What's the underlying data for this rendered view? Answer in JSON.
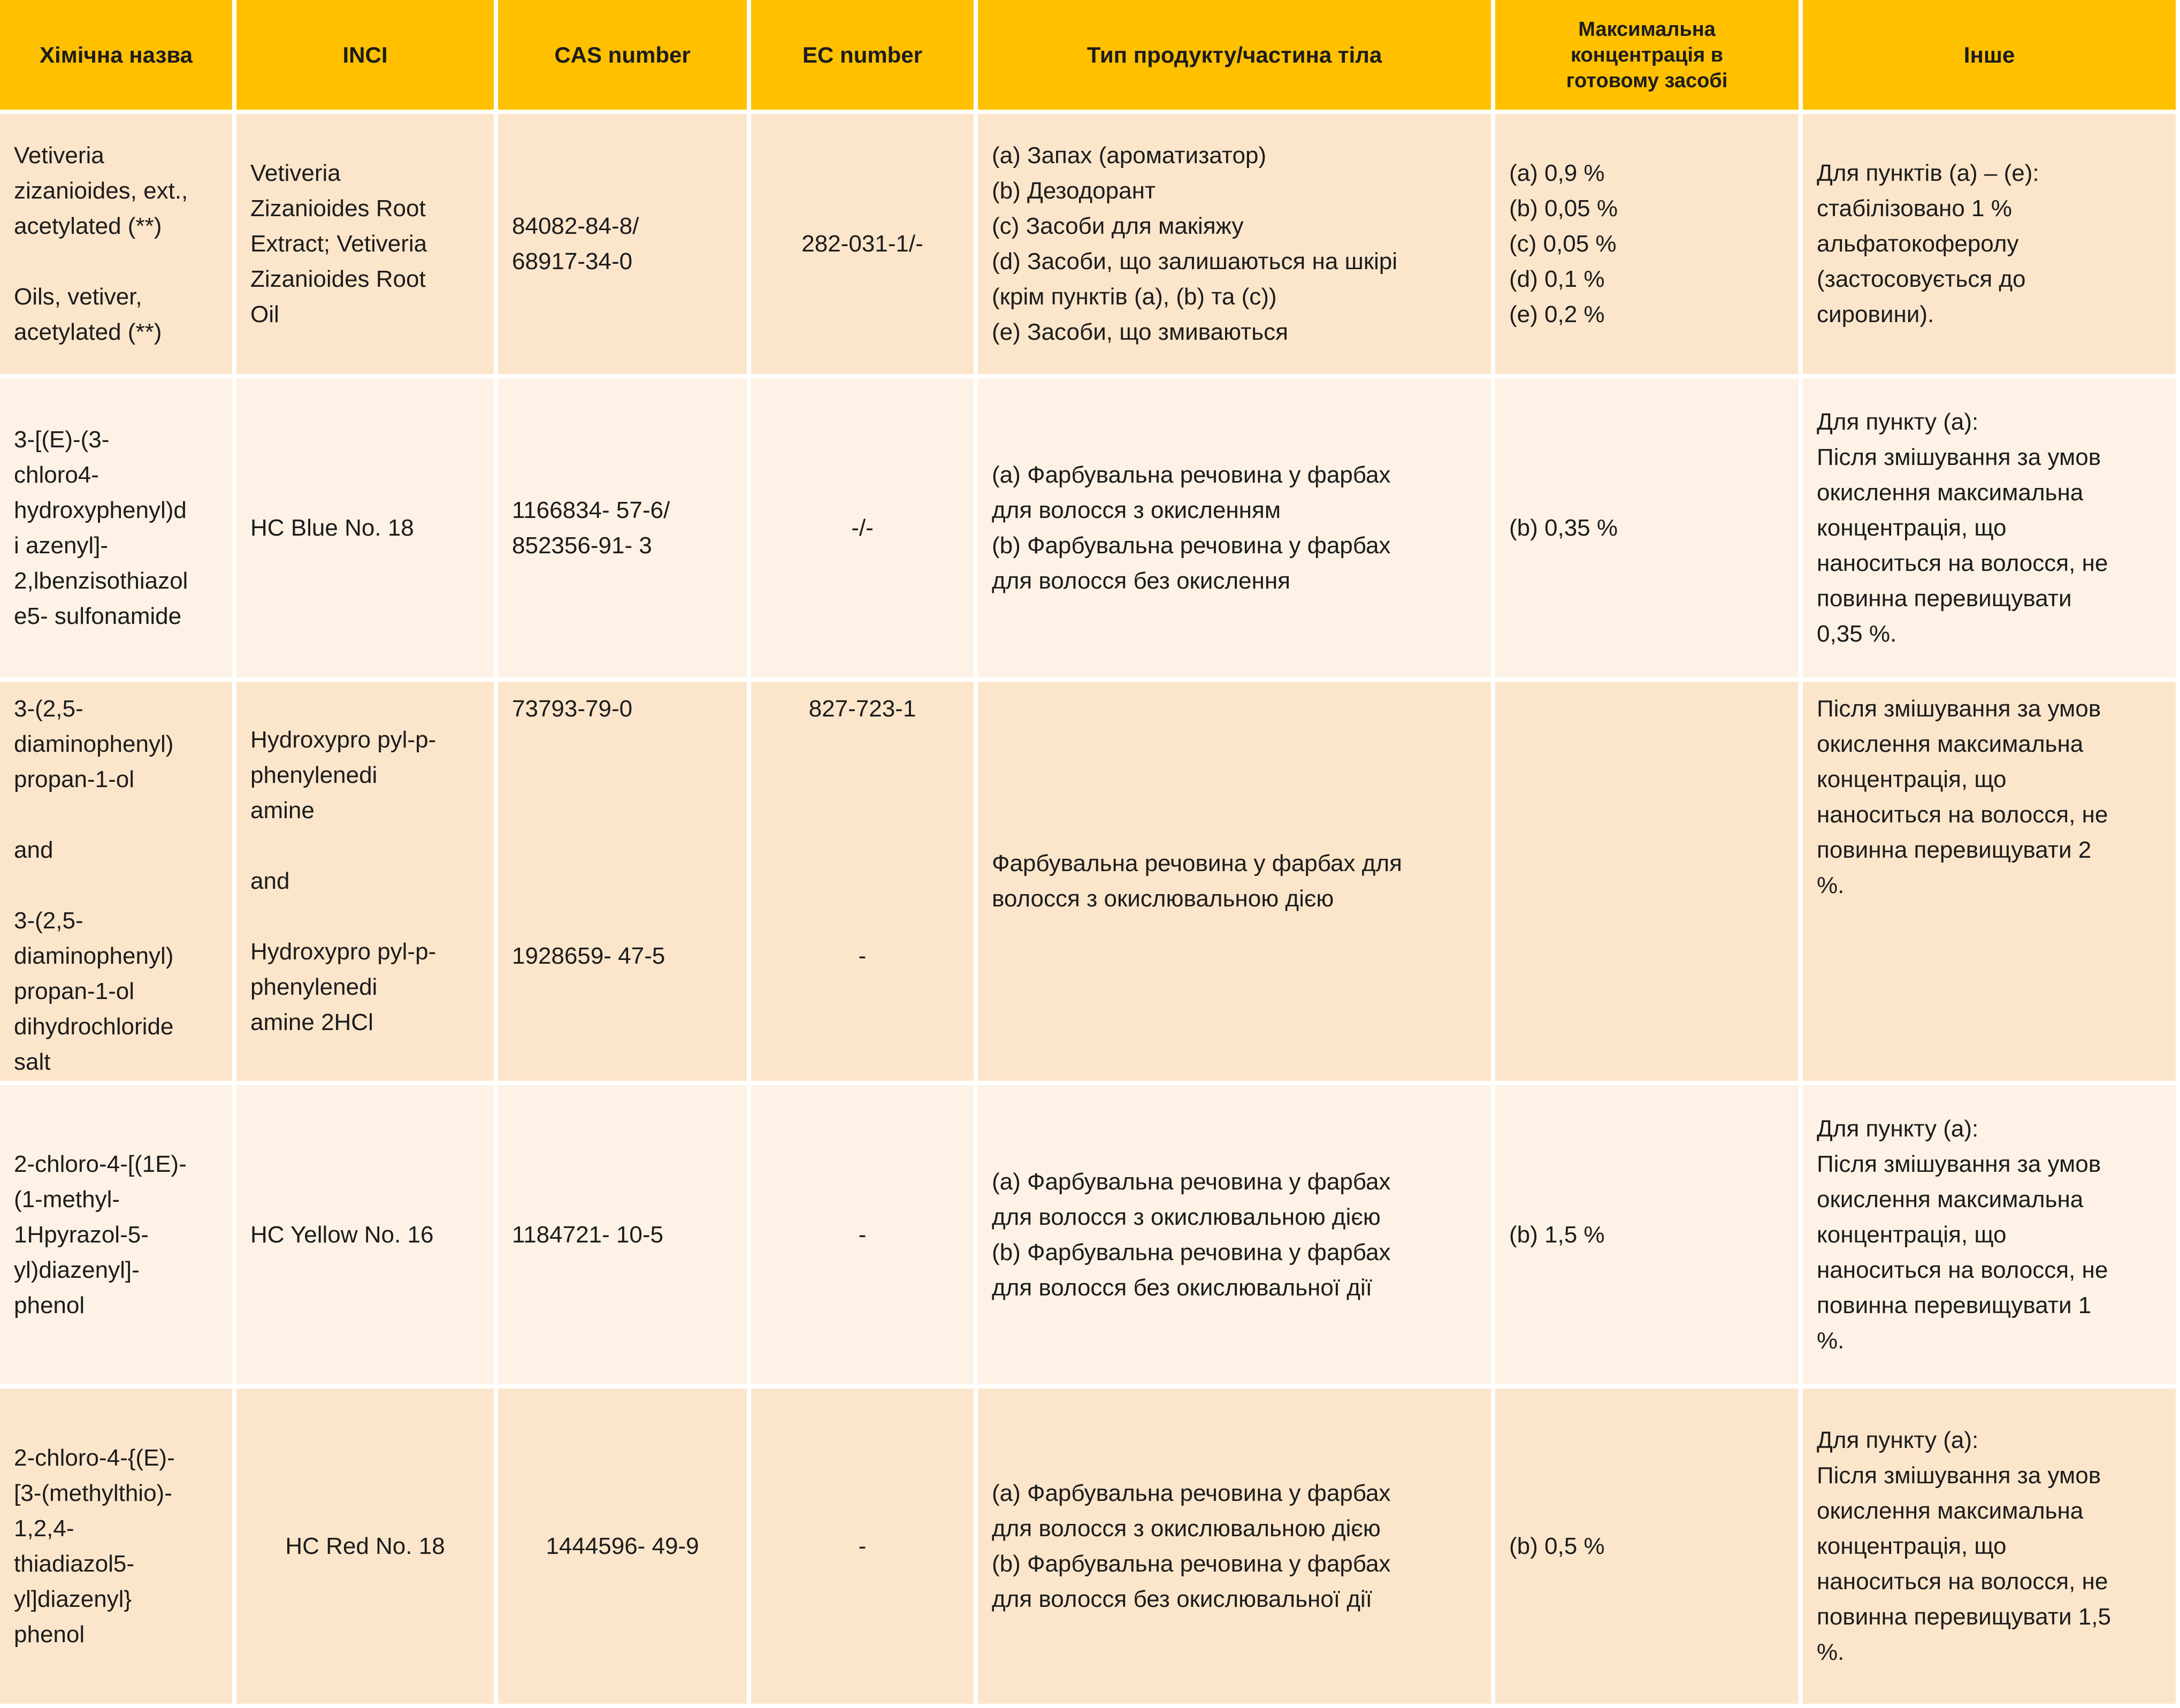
{
  "header": {
    "columns": [
      [
        "Хімічна назва"
      ],
      [
        "INCI"
      ],
      [
        "CAS number"
      ],
      [
        "EC number"
      ],
      [
        "Тип продукту/частина тіла"
      ],
      [
        "Максимальна",
        "концентрація в",
        "готовому засобі"
      ],
      [
        "Інше"
      ]
    ]
  },
  "table": {
    "rows": [
      [
        [
          [
            "Vetiveria",
            "zizanioides, ext.,",
            "acetylated (**)"
          ],
          [
            "Oils, vetiver,",
            "acetylated (**)"
          ]
        ],
        [
          [
            "Vetiveria",
            "Zizanioides Root",
            "Extract; Vetiveria",
            "Zizanioides Root",
            "Oil"
          ]
        ],
        [
          [
            "84082-84-8/",
            "68917-34-0"
          ]
        ],
        [
          [
            "282-031-1/-"
          ]
        ],
        [
          [
            "(a) Запах (ароматизатор)",
            "(b) Дезодорант",
            "(c) Засоби для макіяжу",
            "(d) Засоби, що залишаються на шкірі",
            "(крім пунктів (a), (b) та (c))",
            "(e) Засоби, що змиваються"
          ]
        ],
        [
          [
            "(a) 0,9 %",
            "(b) 0,05 %",
            "(c) 0,05 %",
            "(d) 0,1 %",
            "(e) 0,2 %"
          ]
        ],
        [
          [
            "Для пунктів (a) – (e):",
            "стабілізовано 1 %",
            "альфатокоферолу",
            "(застосовується до",
            "сировини)."
          ]
        ]
      ],
      [
        [
          [
            "3-[(E)-(3-",
            "chloro4-",
            "hydroxyphenyl)d",
            "i azenyl]-",
            "2,lbenzisothiazol",
            "e5- sulfonamide"
          ]
        ],
        [
          [
            "HC Blue No. 18"
          ]
        ],
        [
          [
            "1166834- 57-6/",
            "852356-91- 3"
          ]
        ],
        [
          [
            "-/-"
          ]
        ],
        [
          [
            "(a) Фарбувальна речовина у фарбах",
            "для волосся з окисленням",
            "(b) Фарбувальна речовина у фарбах",
            "для волосся без окислення"
          ]
        ],
        [
          [
            "(b) 0,35 %"
          ]
        ],
        [
          [
            "Для пункту (a):",
            "Після змішування за умов",
            "окислення максимальна",
            "концентрація, що",
            "наноситься на волосся, не",
            "повинна перевищувати",
            "0,35 %."
          ]
        ]
      ],
      [
        [
          [
            "3-(2,5-",
            "diaminophenyl)",
            "propan-1-ol"
          ],
          [
            "and"
          ],
          [
            "3-(2,5-",
            "diaminophenyl)",
            "propan-1-ol",
            "dihydrochloride",
            "salt"
          ]
        ],
        [
          [
            "Hydroxypro pyl-p-",
            "phenylenedi",
            "amine"
          ],
          [
            " and"
          ],
          [
            "Hydroxypro pyl-p-",
            "phenylenedi",
            "amine 2HCl"
          ]
        ],
        [
          [
            "73793-79-0"
          ],
          [
            "1928659- 47-5"
          ]
        ],
        [
          [
            "827-723-1"
          ],
          [
            "-"
          ]
        ],
        [
          [
            "Фарбувальна  речовина  у  фарбах  для",
            "волосся з окислювальною дією"
          ]
        ],
        [],
        [
          [
            "Після змішування за умов",
            "окислення максимальна",
            "концентрація, що",
            "наноситься на волосся, не",
            "повинна перевищувати 2",
            "%."
          ]
        ]
      ],
      [
        [
          [
            "2-chloro-4-[(1E)-",
            "(1-methyl-",
            "1Hpyrazol-5-",
            "yl)diazenyl]-",
            "phenol"
          ]
        ],
        [
          [
            "HC Yellow No. 16"
          ]
        ],
        [
          [
            "1184721- 10-5"
          ]
        ],
        [
          [
            "-"
          ]
        ],
        [
          [
            "(a) Фарбувальна речовина у фарбах",
            "для волосся з окислювальною дією",
            "(b) Фарбувальна речовина у фарбах",
            "для волосся без окислювальної дії"
          ]
        ],
        [
          [
            "(b) 1,5 %"
          ]
        ],
        [
          [
            "Для пункту (a):",
            "Після змішування за умов",
            "окислення максимальна",
            "концентрація, що",
            "наноситься на волосся, не",
            "повинна перевищувати 1",
            "%."
          ]
        ]
      ],
      [
        [
          [
            "2-chloro-4-{(E)-",
            "[3-(methylthio)-",
            "1,2,4-",
            "thiadiazol5-",
            "yl]diazenyl}",
            "phenol"
          ]
        ],
        [
          [
            "HC Red No. 18"
          ]
        ],
        [
          [
            "1444596- 49-9"
          ]
        ],
        [
          [
            "-"
          ]
        ],
        [
          [
            "(a) Фарбувальна речовина у фарбах",
            "для волосся з окислювальною дією",
            "(b) Фарбувальна речовина у фарбах",
            "для волосся без окислювальної дії"
          ]
        ],
        [
          [
            "(b) 0,5 %"
          ]
        ],
        [
          [
            "Для пункту (a):",
            "Після змішування за умов",
            "окислення максимальна",
            "концентрація, що",
            "наноситься на волосся, не",
            "повинна перевищувати 1,5",
            "%."
          ]
        ]
      ]
    ]
  }
}
